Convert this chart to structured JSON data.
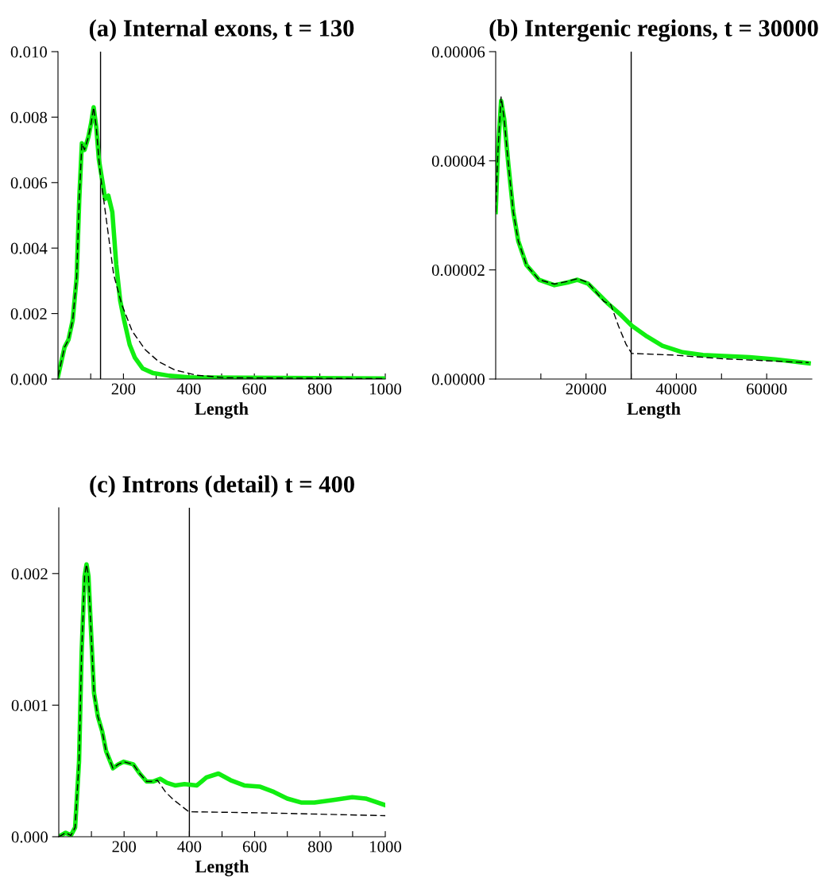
{
  "chart_data": [
    {
      "type": "line",
      "title": "(a) Internal exons, t = 130",
      "xlabel": "Length",
      "xlim": [
        0,
        1000
      ],
      "ylim": [
        0,
        0.01
      ],
      "xticks": [
        {
          "value": 100,
          "label": null
        },
        {
          "value": 200,
          "label": "200"
        },
        {
          "value": 300,
          "label": null
        },
        {
          "value": 400,
          "label": "400"
        },
        {
          "value": 500,
          "label": null
        },
        {
          "value": 600,
          "label": "600"
        },
        {
          "value": 700,
          "label": null
        },
        {
          "value": 800,
          "label": "800"
        },
        {
          "value": 900,
          "label": null
        },
        {
          "value": 1000,
          "label": "1000"
        }
      ],
      "yticks": [
        {
          "value": 0,
          "label": "0.000"
        },
        {
          "value": 0.002,
          "label": "0.002"
        },
        {
          "value": 0.004,
          "label": "0.004"
        },
        {
          "value": 0.006,
          "label": "0.006"
        },
        {
          "value": 0.008,
          "label": "0.008"
        },
        {
          "value": 0.01,
          "label": "0.010"
        }
      ],
      "ref_lines": [
        {
          "axis": "x",
          "value": 130,
          "color": "#000000"
        }
      ],
      "series": [
        {
          "color": "#11ee11",
          "line_style": "solid",
          "x": [
            0,
            20,
            32,
            45,
            57,
            65,
            73,
            81,
            93,
            101,
            109,
            117,
            125,
            138,
            144,
            154,
            166,
            178,
            190,
            202,
            219,
            235,
            259,
            291,
            340,
            405,
            551,
            1000
          ],
          "values": [
            8e-05,
            0.00097,
            0.0012,
            0.0018,
            0.0031,
            0.0055,
            0.0072,
            0.007,
            0.0074,
            0.0078,
            0.0083,
            0.0077,
            0.0067,
            0.0059,
            0.0055,
            0.0056,
            0.0051,
            0.0035,
            0.0024,
            0.0018,
            0.00105,
            0.00065,
            0.00032,
            0.00018,
            0.0001,
            5e-05,
            4e-05,
            2e-05
          ]
        },
        {
          "color": "#000000",
          "line_style": "dashed",
          "x": [
            0,
            20,
            32,
            45,
            57,
            65,
            73,
            81,
            93,
            101,
            109,
            117,
            125,
            130,
            142,
            154,
            170,
            194,
            227,
            267,
            308,
            356,
            421,
            510,
            1000
          ],
          "values": [
            8e-05,
            0.00097,
            0.0012,
            0.0018,
            0.0031,
            0.0055,
            0.0072,
            0.007,
            0.0074,
            0.0078,
            0.0083,
            0.0077,
            0.0067,
            0.0062,
            0.0053,
            0.0044,
            0.0032,
            0.0023,
            0.00146,
            0.00089,
            0.00053,
            0.00028,
            0.00012,
            4e-05,
            1e-05
          ]
        }
      ]
    },
    {
      "type": "line",
      "title": "(b) Intergenic regions, t = 30000",
      "xlabel": "Length",
      "xlim": [
        0,
        70000
      ],
      "ylim": [
        0,
        6e-05
      ],
      "xticks": [
        {
          "value": 10000,
          "label": null
        },
        {
          "value": 20000,
          "label": "20000"
        },
        {
          "value": 30000,
          "label": null
        },
        {
          "value": 40000,
          "label": "40000"
        },
        {
          "value": 50000,
          "label": null
        },
        {
          "value": 60000,
          "label": "60000"
        }
      ],
      "yticks": [
        {
          "value": 0,
          "label": "0.00000"
        },
        {
          "value": 2e-05,
          "label": "0.00002"
        },
        {
          "value": 4e-05,
          "label": "0.00004"
        },
        {
          "value": 6e-05,
          "label": "0.00006"
        }
      ],
      "ref_lines": [
        {
          "axis": "x",
          "value": 30000,
          "color": "#000000"
        }
      ],
      "series": [
        {
          "color": "#11ee11",
          "line_style": "solid",
          "x": [
            0,
            500,
            1200,
            1900,
            2800,
            3900,
            5000,
            6800,
            9600,
            13000,
            15900,
            18100,
            20400,
            24900,
            27800,
            30100,
            33500,
            36900,
            41400,
            45900,
            56200,
            61900,
            69300
          ],
          "values": [
            3.06e-05,
            4.18e-05,
            5.1e-05,
            4.76e-05,
            3.94e-05,
            3.06e-05,
            2.53e-05,
            2.09e-05,
            1.82e-05,
            1.72e-05,
            1.77e-05,
            1.82e-05,
            1.75e-05,
            1.38e-05,
            1.17e-05,
            9.8e-06,
            7.8e-06,
            6.1e-06,
            4.9e-06,
            4.4e-06,
            4e-06,
            3.6e-06,
            2.9e-06
          ]
        },
        {
          "color": "#000000",
          "line_style": "dashed",
          "x": [
            0,
            500,
            1200,
            1900,
            2800,
            3900,
            5000,
            6800,
            9600,
            13000,
            15900,
            18100,
            20400,
            24000,
            25500,
            27200,
            28900,
            30100,
            39200,
            50500,
            69300
          ],
          "values": [
            3.06e-05,
            4.18e-05,
            5.17e-05,
            4.76e-05,
            3.94e-05,
            3.06e-05,
            2.53e-05,
            2.09e-05,
            1.82e-05,
            1.74e-05,
            1.79e-05,
            1.84e-05,
            1.77e-05,
            1.42e-05,
            1.36e-05,
            9.7e-06,
            6.3e-06,
            4.7e-06,
            4.4e-06,
            3.7e-06,
            3e-06
          ]
        }
      ]
    },
    {
      "type": "line",
      "title": "(c) Introns (detail) t = 400",
      "xlabel": "Length",
      "xlim": [
        0,
        1000
      ],
      "ylim": [
        0,
        0.0025
      ],
      "xticks": [
        {
          "value": 100,
          "label": null
        },
        {
          "value": 200,
          "label": "200"
        },
        {
          "value": 300,
          "label": null
        },
        {
          "value": 400,
          "label": "400"
        },
        {
          "value": 500,
          "label": null
        },
        {
          "value": 600,
          "label": "600"
        },
        {
          "value": 700,
          "label": null
        },
        {
          "value": 800,
          "label": "800"
        },
        {
          "value": 900,
          "label": null
        },
        {
          "value": 1000,
          "label": "1000"
        }
      ],
      "yticks": [
        {
          "value": 0,
          "label": "0.000"
        },
        {
          "value": 0.001,
          "label": "0.001"
        },
        {
          "value": 0.002,
          "label": "0.002"
        }
      ],
      "ref_lines": [
        {
          "axis": "x",
          "value": 400,
          "color": "#000000"
        }
      ],
      "series": [
        {
          "color": "#11ee11",
          "line_style": "solid",
          "x": [
            0,
            21,
            37,
            50,
            62,
            70,
            79,
            85,
            91,
            100,
            108,
            120,
            133,
            145,
            166,
            182,
            199,
            228,
            248,
            269,
            290,
            311,
            331,
            356,
            385,
            423,
            452,
            489,
            526,
            568,
            617,
            659,
            700,
            742,
            783,
            841,
            899,
            940,
            1000
          ],
          "values": [
            0,
            3e-05,
            1e-05,
            7e-05,
            0.00057,
            0.0014,
            0.00198,
            0.00207,
            0.00198,
            0.0015,
            0.00109,
            0.00091,
            0.0008,
            0.00065,
            0.00052,
            0.00055,
            0.00057,
            0.00055,
            0.00048,
            0.00042,
            0.00042,
            0.00044,
            0.00041,
            0.00039,
            0.0004,
            0.00039,
            0.00045,
            0.00048,
            0.00043,
            0.00039,
            0.00038,
            0.00034,
            0.00029,
            0.00026,
            0.00026,
            0.00028,
            0.0003,
            0.00029,
            0.00024
          ]
        },
        {
          "color": "#000000",
          "line_style": "dashed",
          "x": [
            0,
            21,
            37,
            50,
            62,
            70,
            79,
            85,
            91,
            100,
            108,
            120,
            133,
            145,
            166,
            182,
            199,
            228,
            248,
            269,
            290,
            302,
            327,
            352,
            393,
            400,
            650,
            1000
          ],
          "values": [
            0,
            3e-05,
            1e-05,
            7e-05,
            0.00057,
            0.0014,
            0.00198,
            0.00207,
            0.00198,
            0.0015,
            0.00109,
            0.00091,
            0.0008,
            0.00065,
            0.00052,
            0.00055,
            0.00057,
            0.00055,
            0.00048,
            0.00042,
            0.00042,
            0.00043,
            0.00034,
            0.00028,
            0.0002,
            0.00019,
            0.00018,
            0.00016
          ]
        }
      ]
    }
  ]
}
